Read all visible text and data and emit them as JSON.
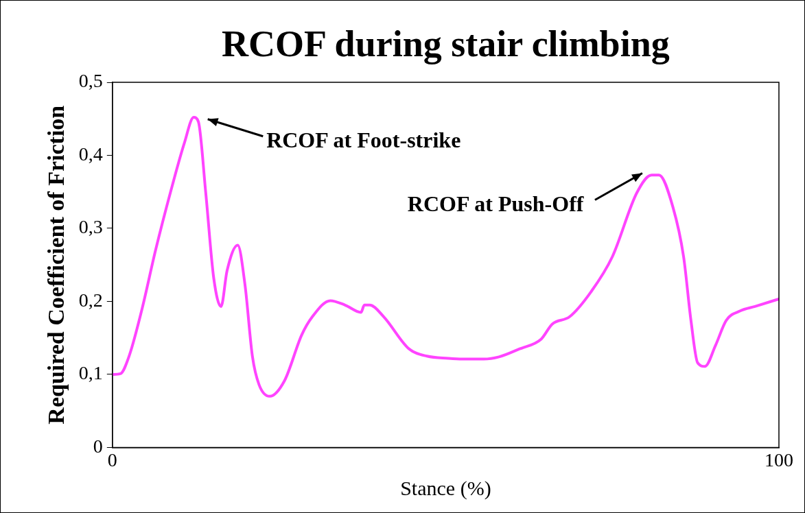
{
  "chart_data": {
    "type": "line",
    "title": "RCOF during stair climbing",
    "xlabel": "Stance (%)",
    "ylabel": "Required Coefficient of Friction",
    "xlim": [
      0,
      100
    ],
    "xticks": [
      0,
      100
    ],
    "ylim": [
      0,
      0.5
    ],
    "yticks": [
      {
        "value": 0,
        "label": "0"
      },
      {
        "value": 0.1,
        "label": "0,1"
      },
      {
        "value": 0.2,
        "label": "0,2"
      },
      {
        "value": 0.3,
        "label": "0,3"
      },
      {
        "value": 0.4,
        "label": "0,4"
      },
      {
        "value": 0.5,
        "label": "0,5"
      }
    ],
    "x": [
      0,
      1.2,
      2.5,
      4.4,
      6.5,
      8.7,
      10.8,
      12.2,
      12.9,
      14.0,
      15.2,
      16.3,
      17.2,
      18.8,
      19.9,
      21.0,
      22.0,
      23.6,
      25.8,
      28.4,
      30.0,
      32.7,
      34.9,
      37.3,
      37.8,
      38.6,
      40.7,
      44.5,
      47.2,
      50.4,
      52.5,
      55.7,
      58.0,
      61.1,
      64.3,
      66.0,
      68.6,
      71.8,
      75.0,
      78.7,
      80.9,
      82.0,
      84.1,
      85.7,
      86.8,
      87.8,
      88.9,
      90.5,
      92.1,
      94.2,
      96.4,
      99.9
    ],
    "series": [
      {
        "color": "#ff44ff",
        "values": [
          0.1,
          0.101,
          0.125,
          0.188,
          0.271,
          0.349,
          0.417,
          0.452,
          0.446,
          0.349,
          0.232,
          0.193,
          0.242,
          0.277,
          0.222,
          0.125,
          0.086,
          0.07,
          0.091,
          0.154,
          0.179,
          0.201,
          0.195,
          0.185,
          0.195,
          0.195,
          0.179,
          0.135,
          0.125,
          0.122,
          0.121,
          0.121,
          0.124,
          0.135,
          0.148,
          0.169,
          0.179,
          0.213,
          0.261,
          0.349,
          0.373,
          0.373,
          0.329,
          0.261,
          0.174,
          0.116,
          0.111,
          0.14,
          0.174,
          0.187,
          0.193,
          0.203
        ]
      }
    ],
    "annotations": [
      "RCOF at Foot-strike",
      "RCOF at Push-Off"
    ],
    "legend": false
  }
}
